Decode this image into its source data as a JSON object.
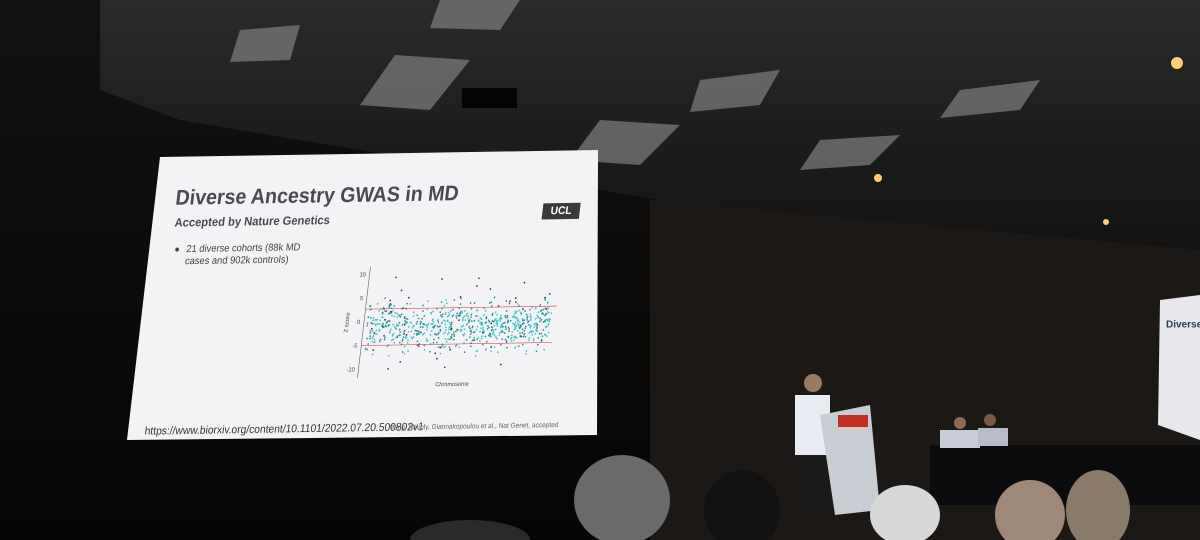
{
  "slide": {
    "title": "Diverse Ancestry GWAS in MD",
    "subtitle": "Accepted by Nature Genetics",
    "logo": "UCL",
    "bullet": [
      "21 diverse cohorts (88k MD",
      "cases and 902k controls)"
    ],
    "plot": {
      "y_label": "Z score",
      "x_label": "Chromosome",
      "yticks": [
        10,
        5,
        0,
        -5,
        -10
      ]
    },
    "url": "https://www.biorxiv.org/content/10.1101/2022.07.20.500802v1",
    "citation": "Meng, Navoly, Giannakopoulou et al., Nat Genet, accepted"
  },
  "side_screen": {
    "title": "Diverse Ance"
  }
}
